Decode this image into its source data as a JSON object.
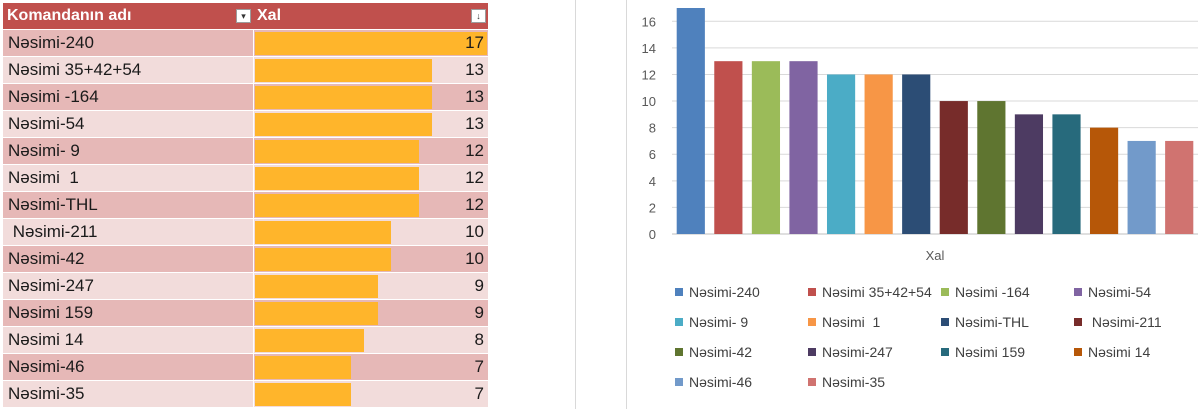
{
  "table": {
    "headers": [
      "Komandanın adı",
      "Xal"
    ],
    "filter_icons": [
      "▾",
      "↓"
    ],
    "rows": [
      {
        "name": "Nəsimi-240",
        "value": 17
      },
      {
        "name": "Nəsimi 35+42+54",
        "value": 13
      },
      {
        "name": "Nəsimi -164",
        "value": 13
      },
      {
        "name": "Nəsimi-54",
        "value": 13
      },
      {
        "name": "Nəsimi- 9",
        "value": 12
      },
      {
        "name": "Nəsimi  1",
        "value": 12
      },
      {
        "name": "Nəsimi-THL",
        "value": 12
      },
      {
        "name": " Nəsimi-211",
        "value": 10
      },
      {
        "name": "Nəsimi-42",
        "value": 10
      },
      {
        "name": "Nəsimi-247",
        "value": 9
      },
      {
        "name": "Nəsimi 159",
        "value": 9
      },
      {
        "name": "Nəsimi 14",
        "value": 8
      },
      {
        "name": "Nəsimi-46",
        "value": 7
      },
      {
        "name": "Nəsimi-35",
        "value": 7
      }
    ],
    "colors": {
      "header": "#c0504d",
      "databar": "#ffb52b"
    }
  },
  "chart_data": {
    "type": "bar",
    "xlabel": "Xal",
    "ylim": [
      0,
      17
    ],
    "yticks": [
      0,
      2,
      4,
      6,
      8,
      10,
      12,
      14,
      16
    ],
    "grid": true,
    "legend_position": "bottom",
    "series": [
      {
        "name": "Nəsimi-240",
        "value": 17,
        "color": "#4f81bd"
      },
      {
        "name": "Nəsimi 35+42+54",
        "value": 13,
        "color": "#c0504d"
      },
      {
        "name": "Nəsimi -164",
        "value": 13,
        "color": "#9bbb59"
      },
      {
        "name": "Nəsimi-54",
        "value": 13,
        "color": "#8064a2"
      },
      {
        "name": "Nəsimi- 9",
        "value": 12,
        "color": "#4bacc6"
      },
      {
        "name": "Nəsimi  1",
        "value": 12,
        "color": "#f79646"
      },
      {
        "name": "Nəsimi-THL",
        "value": 12,
        "color": "#2c4d75"
      },
      {
        "name": " Nəsimi-211",
        "value": 10,
        "color": "#772c2a"
      },
      {
        "name": "Nəsimi-42",
        "value": 10,
        "color": "#5f7530"
      },
      {
        "name": "Nəsimi-247",
        "value": 9,
        "color": "#4d3b62"
      },
      {
        "name": "Nəsimi 159",
        "value": 9,
        "color": "#276a7c"
      },
      {
        "name": "Nəsimi 14",
        "value": 8,
        "color": "#b65708"
      },
      {
        "name": "Nəsimi-46",
        "value": 7,
        "color": "#729aca"
      },
      {
        "name": "Nəsimi-35",
        "value": 7,
        "color": "#d07370"
      }
    ]
  }
}
